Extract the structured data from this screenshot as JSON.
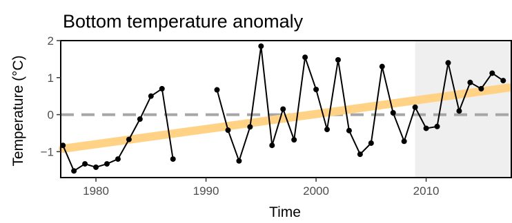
{
  "chart_data": {
    "type": "line",
    "title": "Bottom temperature anomaly",
    "xlabel": "Time",
    "ylabel": "Temperature (°C)",
    "xlim": [
      1976.8,
      2017.8
    ],
    "ylim": [
      -1.7,
      2.0
    ],
    "x_ticks": [
      1980,
      1990,
      2000,
      2010
    ],
    "y_ticks": [
      -1,
      0,
      1,
      2
    ],
    "x_tick_labels": [
      "1980",
      "1990",
      "2000",
      "2010"
    ],
    "y_tick_labels": [
      "−1",
      "0",
      "1",
      "2"
    ],
    "grid": false,
    "legend": "none",
    "reference_line": {
      "y": 0,
      "style": "dashed",
      "color": "#a6a6a6"
    },
    "highlight_region": {
      "x_start": 2009,
      "x_end": 2017.8,
      "color": "#efefef"
    },
    "trend": {
      "x": [
        1977,
        2017.5
      ],
      "y": [
        -0.92,
        0.73
      ],
      "color": "#ffd285"
    },
    "series": [
      {
        "color": "#000000",
        "x": [
          1977,
          1978,
          1979,
          1980,
          1981,
          1982,
          1983,
          1984,
          1985,
          1986,
          1987,
          1988,
          1989,
          1990,
          1991,
          1992,
          1993,
          1994,
          1995,
          1996,
          1997,
          1998,
          1999,
          2000,
          2001,
          2002,
          2003,
          2004,
          2005,
          2006,
          2007,
          2008,
          2009,
          2010,
          2011,
          2012,
          2013,
          2014,
          2015,
          2016,
          2017
        ],
        "y": [
          -0.83,
          -1.52,
          -1.33,
          -1.42,
          -1.33,
          -1.2,
          -0.67,
          -0.12,
          0.5,
          0.7,
          -1.2,
          null,
          null,
          null,
          0.67,
          -0.42,
          -1.25,
          -0.33,
          1.85,
          -0.83,
          0.15,
          -0.68,
          1.55,
          0.68,
          -0.4,
          1.48,
          -0.43,
          -1.07,
          -0.77,
          1.3,
          0.05,
          -0.72,
          0.2,
          -0.37,
          -0.32,
          1.4,
          0.1,
          0.87,
          0.7,
          1.12,
          0.92
        ]
      }
    ]
  }
}
